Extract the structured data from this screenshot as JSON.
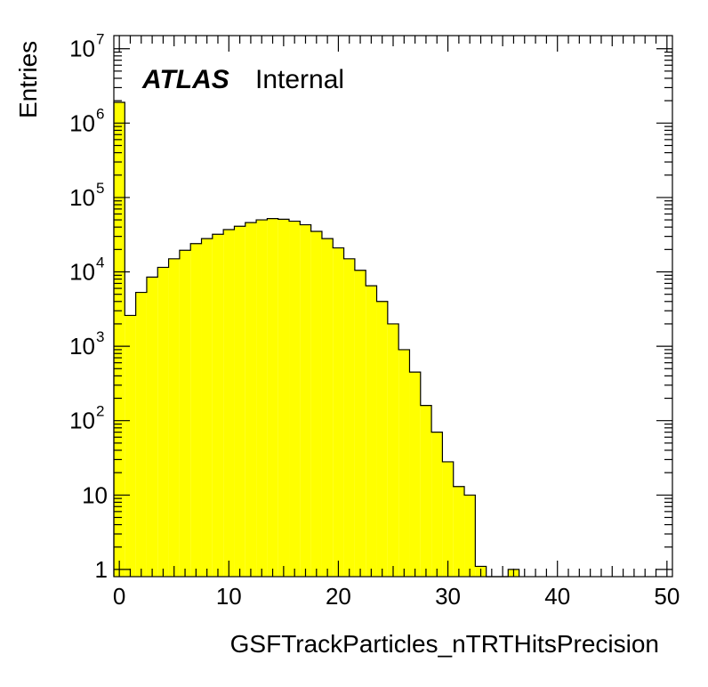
{
  "chart_data": {
    "type": "bar",
    "style": "histogram",
    "fill_color": "#ffff00",
    "line_color": "#000000",
    "xlabel": "GSFTrackParticles_nTRTHitsPrecision",
    "ylabel": "Entries",
    "xlim": [
      -0.5,
      50.5
    ],
    "ylim": [
      0.8,
      15000000
    ],
    "yscale": "log",
    "bin_width": 1,
    "bin_low_edges": [
      -0.5,
      0.5,
      1.5,
      2.5,
      3.5,
      4.5,
      5.5,
      6.5,
      7.5,
      8.5,
      9.5,
      10.5,
      11.5,
      12.5,
      13.5,
      14.5,
      15.5,
      16.5,
      17.5,
      18.5,
      19.5,
      20.5,
      21.5,
      22.5,
      23.5,
      24.5,
      25.5,
      26.5,
      27.5,
      28.5,
      29.5,
      30.5,
      31.5,
      32.5,
      33.5,
      34.5,
      35.5
    ],
    "values": [
      1900000,
      2600,
      5300,
      8500,
      11500,
      15000,
      19500,
      24000,
      28000,
      32000,
      37000,
      41000,
      46000,
      50000,
      52000,
      51000,
      48000,
      43000,
      35000,
      28000,
      21000,
      15000,
      10500,
      6500,
      4000,
      2000,
      900,
      450,
      160,
      70,
      28,
      13,
      10,
      1.1,
      0,
      0,
      1
    ],
    "x_ticks": [
      "0",
      "10",
      "20",
      "30",
      "40",
      "50"
    ],
    "x_tick_values": [
      0,
      10,
      20,
      30,
      40,
      50
    ],
    "y_ticks": [
      {
        "value": 1,
        "base": "1",
        "exp": ""
      },
      {
        "value": 10,
        "base": "10",
        "exp": ""
      },
      {
        "value": 100,
        "base": "10",
        "exp": "2"
      },
      {
        "value": 1000,
        "base": "10",
        "exp": "3"
      },
      {
        "value": 10000,
        "base": "10",
        "exp": "4"
      },
      {
        "value": 100000,
        "base": "10",
        "exp": "5"
      },
      {
        "value": 1000000,
        "base": "10",
        "exp": "6"
      },
      {
        "value": 10000000,
        "base": "10",
        "exp": "7"
      }
    ],
    "annotations": {
      "experiment": "ATLAS",
      "status": "Internal"
    },
    "grid": false,
    "legend": "none"
  }
}
